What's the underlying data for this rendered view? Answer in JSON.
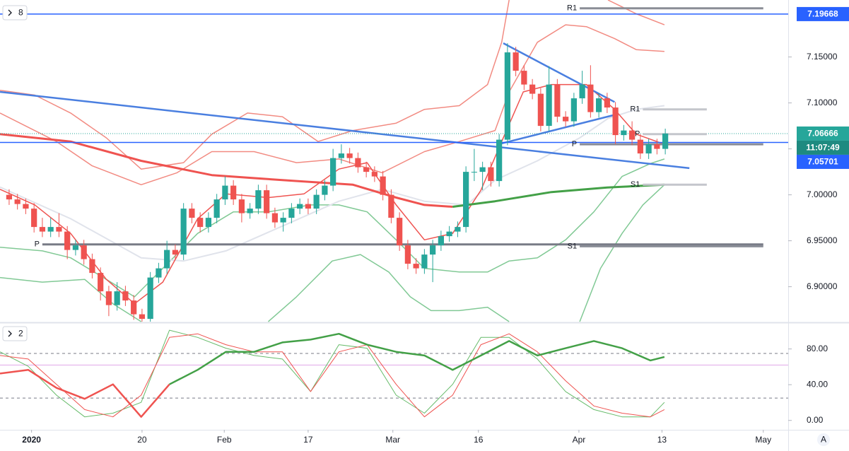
{
  "chart_data": [
    {
      "type": "candlestick",
      "collapsed_count": "8",
      "up_color": "#26a69a",
      "down_color": "#ef5350",
      "xlim": [
        -1.1,
        93.8
      ],
      "ylim": [
        6.862,
        7.212
      ],
      "xticks": [
        {
          "value": 2.7,
          "label": "2020"
        },
        {
          "value": 16,
          "label": "20"
        },
        {
          "value": 25.9,
          "label": "Feb"
        },
        {
          "value": 36,
          "label": "17"
        },
        {
          "value": 46.2,
          "label": "Mar"
        },
        {
          "value": 56.5,
          "label": "16"
        },
        {
          "value": 68.6,
          "label": "Apr"
        },
        {
          "value": 78.6,
          "label": "13"
        },
        {
          "value": 90.8,
          "label": "May"
        }
      ],
      "yticks": [
        {
          "value": 6.9,
          "label": "6.90000"
        },
        {
          "value": 6.95,
          "label": "6.95000"
        },
        {
          "value": 7.0,
          "label": "7.00000"
        },
        {
          "value": 7.05,
          "label": "7.05000"
        },
        {
          "value": 7.1,
          "label": "7.10000"
        },
        {
          "value": 7.15,
          "label": "7.15000"
        }
      ],
      "open": [
        7.0,
        6.995,
        6.99,
        6.985,
        6.965,
        6.96,
        6.965,
        6.96,
        6.94,
        6.945,
        6.93,
        6.915,
        6.895,
        6.88,
        6.895,
        6.885,
        6.87,
        6.865,
        6.91,
        6.92,
        6.94,
        6.935,
        6.985,
        6.975,
        6.965,
        6.975,
        6.995,
        7.01,
        6.995,
        6.98,
        6.985,
        7.005,
        6.98,
        6.97,
        6.975,
        6.985,
        6.99,
        6.985,
        7.0,
        7.01,
        7.04,
        7.045,
        7.04,
        7.03,
        7.025,
        7.02,
        7.0,
        6.975,
        6.945,
        6.925,
        6.92,
        6.935,
        6.945,
        6.955,
        6.96,
        6.965,
        7.025,
        7.025,
        7.03,
        7.015,
        7.06,
        7.155,
        7.135,
        7.12,
        7.11,
        7.075,
        7.12,
        7.085,
        7.08,
        7.105,
        7.12,
        7.09,
        7.105,
        7.095,
        7.065,
        7.07,
        7.06,
        7.045,
        7.055,
        7.05
      ],
      "high": [
        7.006,
        7.001,
        6.996,
        6.991,
        6.975,
        6.975,
        6.98,
        6.966,
        6.951,
        6.951,
        6.936,
        6.921,
        6.901,
        6.905,
        6.901,
        6.891,
        6.876,
        6.916,
        6.926,
        6.95,
        6.946,
        6.991,
        6.991,
        6.981,
        6.981,
        7.001,
        7.02,
        7.016,
        7.001,
        6.991,
        7.011,
        7.011,
        6.986,
        6.981,
        6.991,
        6.996,
        6.996,
        7.006,
        7.016,
        7.05,
        7.055,
        7.051,
        7.046,
        7.036,
        7.031,
        7.026,
        7.006,
        6.981,
        6.951,
        6.931,
        6.941,
        6.951,
        6.961,
        6.966,
        6.971,
        7.031,
        7.05,
        7.036,
        7.036,
        7.066,
        7.165,
        7.161,
        7.141,
        7.126,
        7.116,
        7.14,
        7.126,
        7.091,
        7.111,
        7.135,
        7.141,
        7.111,
        7.111,
        7.101,
        7.076,
        7.08,
        7.066,
        7.061,
        7.061,
        7.072
      ],
      "low": [
        6.989,
        6.984,
        6.979,
        6.959,
        6.954,
        6.954,
        6.954,
        6.93,
        6.934,
        6.924,
        6.909,
        6.885,
        6.868,
        6.874,
        6.879,
        6.864,
        6.862,
        6.862,
        6.904,
        6.914,
        6.929,
        6.929,
        6.969,
        6.959,
        6.959,
        6.969,
        6.989,
        6.989,
        6.97,
        6.974,
        6.979,
        6.974,
        6.964,
        6.96,
        6.969,
        6.979,
        6.979,
        6.979,
        6.994,
        7.004,
        7.034,
        7.034,
        7.024,
        7.019,
        7.014,
        6.994,
        6.969,
        6.939,
        6.919,
        6.914,
        6.914,
        6.905,
        6.939,
        6.949,
        6.954,
        6.959,
        7.015,
        7.005,
        7.009,
        7.009,
        7.054,
        7.129,
        7.114,
        7.104,
        7.069,
        7.069,
        7.079,
        7.074,
        7.074,
        7.099,
        7.084,
        7.084,
        7.089,
        7.055,
        7.059,
        7.054,
        7.039,
        7.039,
        7.044,
        7.044
      ],
      "close": [
        6.995,
        6.99,
        6.985,
        6.965,
        6.96,
        6.965,
        6.96,
        6.94,
        6.945,
        6.93,
        6.915,
        6.895,
        6.88,
        6.895,
        6.885,
        6.87,
        6.865,
        6.91,
        6.92,
        6.94,
        6.935,
        6.985,
        6.975,
        6.965,
        6.975,
        6.995,
        7.01,
        6.995,
        6.98,
        6.985,
        7.005,
        6.98,
        6.97,
        6.975,
        6.985,
        6.99,
        6.985,
        7.0,
        7.01,
        7.04,
        7.045,
        7.04,
        7.03,
        7.025,
        7.02,
        7.0,
        6.975,
        6.945,
        6.925,
        6.92,
        6.935,
        6.945,
        6.955,
        6.96,
        6.965,
        7.025,
        7.025,
        7.03,
        7.015,
        7.06,
        7.155,
        7.135,
        7.12,
        7.11,
        7.075,
        7.12,
        7.085,
        7.08,
        7.105,
        7.12,
        7.09,
        7.105,
        7.095,
        7.065,
        7.07,
        7.06,
        7.045,
        7.055,
        7.05,
        7.06666
      ],
      "overlays": [
        {
          "color": "#f28b82",
          "width": 1.5,
          "x": [
            -1.1,
            3.1,
            7.4,
            11.7,
            15.9,
            21,
            24.4,
            28.7,
            32.9,
            37.2,
            41.4,
            46.6,
            50,
            54.2,
            57.6,
            59.3,
            60.2,
            63,
            72.1,
            75.5,
            78.9
          ],
          "values": [
            7.1138,
            7.1085,
            7.089,
            7.062,
            7.028,
            7.035,
            7.066,
            7.089,
            7.085,
            7.058,
            7.07,
            7.078,
            7.093,
            7.097,
            7.12,
            7.166,
            7.212,
            null,
            7.212,
            7.197,
            7.185
          ]
        },
        {
          "color": "#f28b82",
          "width": 1.5,
          "x": [
            -1.1,
            5.7,
            10,
            15.9,
            20.2,
            24.4,
            29.5,
            34.6,
            39.7,
            44.9,
            50,
            54.2,
            58.5,
            60.2,
            63.6,
            67,
            69.5,
            72.9,
            75.5,
            78.9
          ],
          "values": [
            7.089,
            7.058,
            7.0315,
            7.011,
            7.024,
            7.047,
            7.047,
            7.035,
            7.039,
            7.024,
            7.047,
            7.058,
            7.07,
            7.112,
            7.166,
            7.185,
            7.183,
            7.17,
            7.158,
            7.156
          ]
        },
        {
          "color": "#81c995",
          "width": 1.5,
          "x": [
            -1.1,
            4,
            7.4,
            11.7,
            15.1,
            18.5,
            22.7,
            27,
            31.2,
            36.3,
            39.7,
            43.1,
            46.6,
            50,
            54.2,
            57.6,
            60.2,
            63.6,
            67,
            70.4,
            73.8,
            77.2,
            78.9
          ],
          "values": [
            6.943,
            6.939,
            6.9315,
            6.908,
            6.889,
            6.92,
            6.958,
            6.9815,
            6.9815,
            6.989,
            6.989,
            6.9815,
            6.951,
            6.92,
            6.916,
            6.916,
            6.928,
            6.9315,
            6.951,
            6.9815,
            7.02,
            7.034,
            7.039
          ]
        },
        {
          "color": "#81c995",
          "width": 1.5,
          "x": [
            -1.1,
            4,
            9.1,
            12.5,
            15.9,
            25,
            31.2,
            34.6,
            38.9,
            42.3,
            45.7,
            48.3,
            50.8,
            54.2,
            57.6,
            60.2,
            65,
            68.7,
            71.2,
            73.8,
            76.3,
            78.9
          ],
          "values": [
            6.91,
            6.905,
            6.908,
            6.8815,
            6.862,
            null,
            6.862,
            6.889,
            6.928,
            6.935,
            6.916,
            6.889,
            6.874,
            6.874,
            6.8777,
            6.862,
            null,
            6.862,
            6.92,
            6.958,
            6.989,
            7.011
          ]
        },
        {
          "color": "#e0e3eb",
          "width": 2,
          "x": [
            -1.1,
            7.4,
            15.9,
            21,
            26.1,
            32.9,
            39.7,
            44.9,
            50,
            55.1,
            58.5,
            63.6,
            68.7,
            72.1,
            75.5,
            78.9
          ],
          "values": [
            7.0085,
            6.974,
            6.9315,
            6.928,
            6.939,
            6.966,
            6.993,
            7.006,
            6.993,
            6.989,
            7.016,
            7.037,
            7.062,
            7.083,
            7.093,
            7.097
          ]
        },
        {
          "color": "#ef5350",
          "width": 1.5,
          "x": [
            -1.1,
            3.1,
            7.4,
            11.7,
            15.1,
            18.5,
            22.7,
            26.1,
            31.2,
            35.5,
            39.7,
            43.1,
            46.6,
            50,
            53.4,
            56.8,
            59.3,
            61.9,
            65.3,
            69.5,
            72.9,
            75.5,
            78.9
          ],
          "values": [
            7.006,
            6.989,
            6.958,
            6.908,
            6.8815,
            6.905,
            6.974,
            7.001,
            6.997,
            7.001,
            7.028,
            7.035,
            6.989,
            6.951,
            6.958,
            7.005,
            7.058,
            7.112,
            7.12,
            7.12,
            7.093,
            7.066,
            7.055
          ]
        },
        {
          "color": "#ef5350",
          "width": 3,
          "x": [
            -1.1,
            7.4,
            15.9,
            24.4,
            32.9,
            41.4,
            46.6,
            50,
            53.4
          ],
          "values": [
            7.066,
            7.058,
            7.037,
            7.0215,
            7.016,
            7.011,
            6.997,
            6.989,
            6.987
          ]
        },
        {
          "color": "#43a047",
          "width": 3,
          "x": [
            53.4,
            58.5,
            65.3,
            72,
            78.9
          ],
          "values": [
            6.987,
            6.993,
            7.003,
            7.008,
            7.011
          ]
        },
        {
          "color": "#4a7fe0",
          "width": 2.5,
          "x": [
            -1.1,
            81.9
          ],
          "values": [
            7.112,
            7.029
          ]
        },
        {
          "color": "#4a7fe0",
          "width": 2.5,
          "x": [
            58.9,
            72.9
          ],
          "values": [
            7.055,
            7.087
          ]
        },
        {
          "color": "#4a7fe0",
          "width": 2.5,
          "x": [
            59.5,
            72.9
          ],
          "values": [
            7.165,
            7.101
          ]
        }
      ],
      "hlines": [
        {
          "value": 7.19668,
          "color": "#2962ff",
          "style": "solid"
        },
        {
          "value": 7.05701,
          "color": "#2962ff",
          "style": "solid"
        },
        {
          "value": 7.06666,
          "color": "#26a69a",
          "style": "dotted"
        }
      ],
      "levels": [
        {
          "label": "R1",
          "value": 7.203,
          "x": [
            68.7,
            90.8
          ],
          "color": "#8a8d96"
        },
        {
          "label": "P",
          "value": 7.055,
          "x": [
            68.7,
            90.8
          ],
          "color": "#8a8d96"
        },
        {
          "label": "P",
          "value": 6.946,
          "x": [
            4,
            90.8
          ],
          "color": "#787b86"
        },
        {
          "label": "S1",
          "value": 6.944,
          "x": [
            68.7,
            90.8
          ],
          "color": "#8a8d96"
        },
        {
          "label": "R1",
          "value": 7.093,
          "x": [
            76.3,
            84
          ],
          "color": "#c4c6cc"
        },
        {
          "label": "P",
          "value": 7.066,
          "x": [
            76.3,
            84
          ],
          "color": "#c4c6cc"
        },
        {
          "label": "S1",
          "value": 7.011,
          "x": [
            76.3,
            84
          ],
          "color": "#c4c6cc"
        }
      ],
      "price_labels": [
        {
          "value": 7.19668,
          "color": "#2962ff"
        },
        {
          "value": 7.06666,
          "color": "#26a69a"
        },
        {
          "value": 7.05701,
          "color": "#2962ff"
        }
      ],
      "countdown": "11:07:49",
      "scale_button": "A"
    },
    {
      "type": "line",
      "collapsed_count": "2",
      "xlim": [
        -1.1,
        93.8
      ],
      "ylim": [
        -10.5,
        109
      ],
      "yticks": [
        {
          "value": 0,
          "label": "0.00"
        },
        {
          "value": 40,
          "label": "40.00"
        },
        {
          "value": 80,
          "label": "80.00"
        }
      ],
      "x": [
        -1.1,
        2.3,
        5.7,
        9.1,
        12.5,
        15.9,
        19.3,
        22.7,
        26.1,
        29.5,
        32.9,
        36.3,
        39.7,
        43.1,
        46.6,
        50,
        53.4,
        56.8,
        60.2,
        63.6,
        67,
        70.4,
        73.8,
        77.2,
        78.9
      ],
      "series": [
        {
          "color": "#66bb6a",
          "width": 1,
          "values": [
            76.8,
            60.6,
            28.3,
            4,
            8.1,
            20.2,
            101,
            92.9,
            80.8,
            72.7,
            68.7,
            32.3,
            84.8,
            80.8,
            28.3,
            8.1,
            40.4,
            92.9,
            92.9,
            68.7,
            32.3,
            12.1,
            4,
            4,
            20.2
          ]
        },
        {
          "color": "#ef5350",
          "width": 1,
          "values": [
            72.7,
            68.7,
            40.4,
            12.1,
            4,
            28.3,
            92.9,
            97,
            84.8,
            76.8,
            76.8,
            32.3,
            76.8,
            84.8,
            40.4,
            4,
            28.3,
            84.8,
            97,
            76.8,
            44.4,
            16.2,
            8.1,
            4,
            12.1
          ]
        },
        {
          "color": "#ef5350",
          "width": 2.5,
          "values": [
            52.5,
            56.6,
            36.4,
            24.2,
            40.4,
            4,
            40.4,
            null,
            null,
            null,
            null,
            null,
            null,
            null,
            null,
            null,
            null,
            null,
            null,
            null,
            null,
            null,
            null,
            null,
            null
          ]
        },
        {
          "color": "#43a047",
          "width": 2.5,
          "values": [
            null,
            null,
            null,
            null,
            null,
            null,
            40.4,
            56.6,
            76.8,
            76.8,
            87.3,
            90.5,
            97,
            84.8,
            76.8,
            72.7,
            56.6,
            72.7,
            88.9,
            72.7,
            80.8,
            88.9,
            80.8,
            67.1,
            71.1
          ]
        }
      ],
      "hlines": [
        {
          "value": 75,
          "color": "#787b86",
          "style": "dashed"
        },
        {
          "value": 25,
          "color": "#787b86",
          "style": "dashed"
        },
        {
          "value": 62,
          "color": "#e1a6e8",
          "style": "solid"
        }
      ]
    }
  ]
}
